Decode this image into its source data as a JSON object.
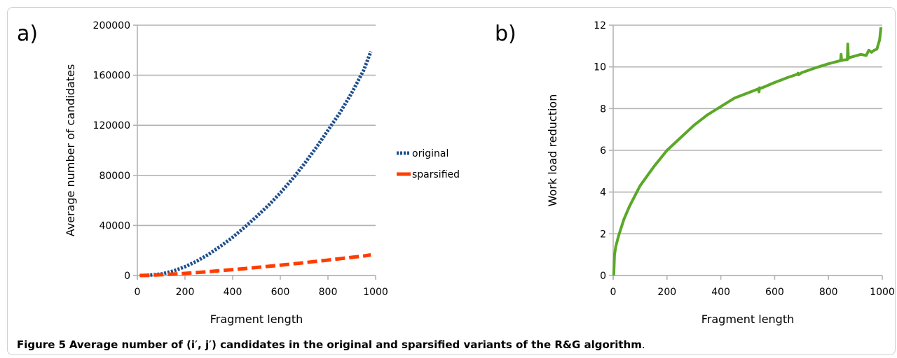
{
  "chart_data": [
    {
      "panel_label": "a)",
      "type": "line",
      "xlabel": "Fragment length",
      "ylabel": "Average number of candidates",
      "xlim": [
        0,
        1000
      ],
      "ylim": [
        0,
        200000
      ],
      "xticks": [
        "0",
        "200",
        "400",
        "600",
        "800",
        "1000"
      ],
      "yticks": [
        "0",
        "40000",
        "80000",
        "120000",
        "160000",
        "200000"
      ],
      "grid": "horizontal",
      "legend": "right",
      "series": [
        {
          "name": "original",
          "color": "#1f4e8c",
          "style": "dotted",
          "x": [
            10,
            50,
            100,
            150,
            200,
            250,
            300,
            350,
            400,
            450,
            500,
            550,
            600,
            650,
            700,
            750,
            800,
            850,
            900,
            950,
            980
          ],
          "y": [
            0,
            300,
            1200,
            3500,
            7000,
            11500,
            17000,
            23500,
            30500,
            38500,
            47000,
            56000,
            66000,
            77000,
            89000,
            102000,
            116000,
            130000,
            146000,
            164000,
            179000
          ]
        },
        {
          "name": "sparsified",
          "color": "#ff3d00",
          "style": "dashed",
          "x": [
            10,
            50,
            100,
            150,
            200,
            250,
            300,
            350,
            400,
            450,
            500,
            550,
            600,
            650,
            700,
            750,
            800,
            850,
            900,
            950,
            980
          ],
          "y": [
            0,
            150,
            600,
            1100,
            1700,
            2400,
            3100,
            3900,
            4700,
            5500,
            6400,
            7300,
            8200,
            9200,
            10200,
            11300,
            12300,
            13400,
            14500,
            15600,
            16500
          ]
        }
      ]
    },
    {
      "panel_label": "b)",
      "type": "line",
      "xlabel": "Fragment length",
      "ylabel": "Work load reduction",
      "xlim": [
        0,
        1000
      ],
      "ylim": [
        0,
        12
      ],
      "xticks": [
        "0",
        "200",
        "400",
        "600",
        "800",
        "1000"
      ],
      "yticks": [
        "0",
        "2",
        "4",
        "6",
        "8",
        "10",
        "12"
      ],
      "grid": "horizontal",
      "series": [
        {
          "color": "#5ba829",
          "style": "solid",
          "x": [
            2,
            5,
            10,
            20,
            40,
            60,
            80,
            100,
            150,
            200,
            250,
            300,
            350,
            400,
            450,
            500,
            540,
            542,
            544,
            550,
            600,
            650,
            685,
            687,
            689,
            700,
            750,
            800,
            845,
            847,
            849,
            850,
            870,
            872,
            874,
            880,
            920,
            940,
            950,
            960,
            970,
            980,
            990,
            995
          ],
          "y": [
            0,
            1,
            1.4,
            1.9,
            2.7,
            3.3,
            3.8,
            4.3,
            5.2,
            6.0,
            6.6,
            7.2,
            7.7,
            8.1,
            8.5,
            8.75,
            8.95,
            8.8,
            9.0,
            8.98,
            9.25,
            9.5,
            9.65,
            9.7,
            9.62,
            9.72,
            9.95,
            10.15,
            10.3,
            10.6,
            10.3,
            10.32,
            10.35,
            11.1,
            10.4,
            10.45,
            10.6,
            10.55,
            10.8,
            10.7,
            10.8,
            10.85,
            11.3,
            11.9
          ]
        }
      ]
    }
  ],
  "caption": {
    "label": "Figure 5",
    "text": "Average number of (i′, j′) candidates in the original and sparsified variants of the R&G algorithm",
    "end": "."
  }
}
